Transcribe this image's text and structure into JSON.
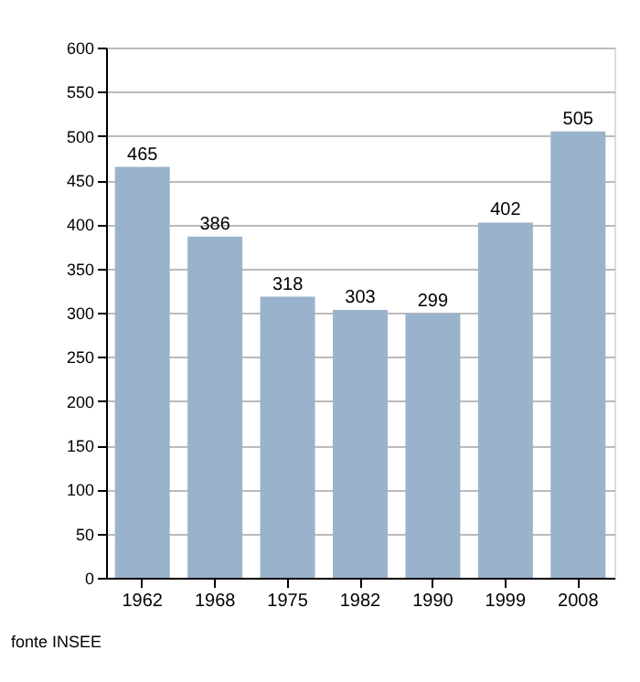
{
  "chart_data": {
    "type": "bar",
    "categories": [
      "1962",
      "1968",
      "1975",
      "1982",
      "1990",
      "1999",
      "2008"
    ],
    "values": [
      465,
      386,
      318,
      303,
      299,
      402,
      505
    ],
    "color": "#9ab3cc",
    "ylim": [
      0,
      600
    ],
    "yticks": [
      0,
      50,
      100,
      150,
      200,
      250,
      300,
      350,
      400,
      450,
      500,
      550,
      600
    ],
    "grid": "y",
    "data_labels": true,
    "annotations": [
      "fonte INSEE"
    ]
  }
}
